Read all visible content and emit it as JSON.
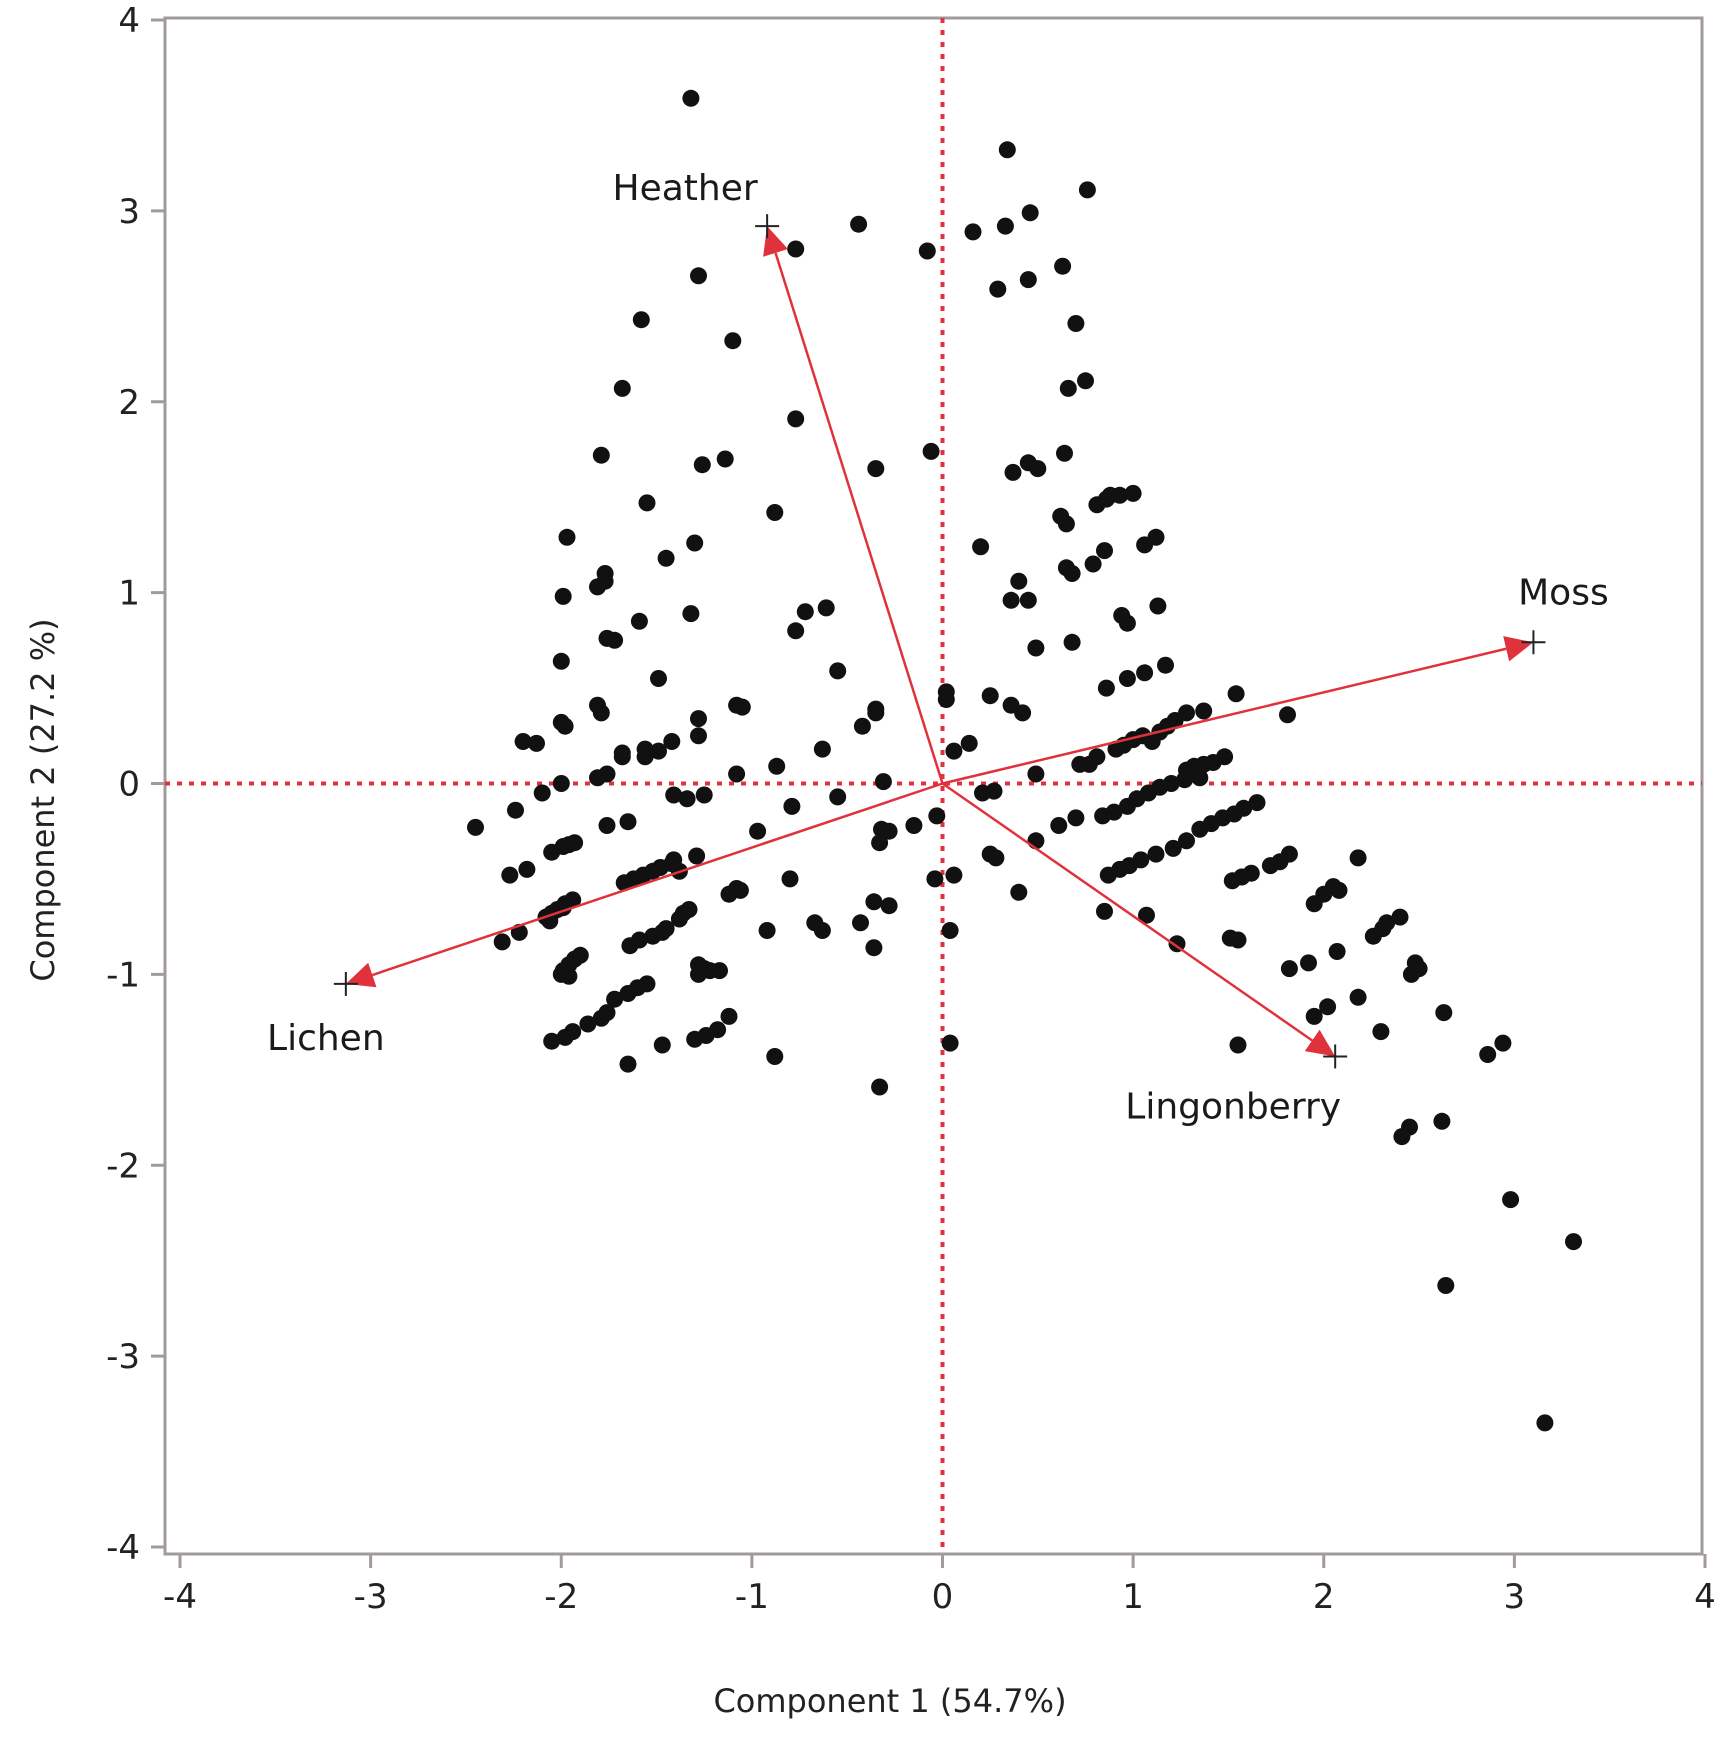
{
  "chart_data": {
    "type": "scatter",
    "title": "",
    "xlabel": "Component 1 (54.7%)",
    "ylabel": "Component 2  (27.2 %)",
    "xlim": [
      -4,
      4
    ],
    "ylim": [
      -4,
      4
    ],
    "x_ticks": [
      "-4",
      "-3",
      "-2",
      "-1",
      "0",
      "1",
      "2",
      "3",
      "4"
    ],
    "y_ticks": [
      "4",
      "3",
      "2",
      "1",
      "0",
      "-1",
      "-2",
      "-3",
      "-4"
    ],
    "grid": false,
    "reference_lines": {
      "x": 0,
      "y": 0,
      "style": "dotted",
      "color": "#e0323c"
    },
    "colors": {
      "points": "#111111",
      "vectors": "#e0323c",
      "frame": "#a09a9a"
    },
    "vectors": [
      {
        "name": "Heather",
        "x": -0.92,
        "y": 2.92
      },
      {
        "name": "Moss",
        "x": 3.1,
        "y": 0.74
      },
      {
        "name": "Lichen",
        "x": -3.13,
        "y": -1.05
      },
      {
        "name": "Lingonberry",
        "x": 2.06,
        "y": -1.43
      }
    ],
    "points": [
      [
        -1.32,
        3.59
      ],
      [
        -0.44,
        2.93
      ],
      [
        -0.08,
        2.79
      ],
      [
        -0.77,
        2.8
      ],
      [
        -1.28,
        2.66
      ],
      [
        -1.58,
        2.43
      ],
      [
        -1.1,
        2.32
      ],
      [
        -1.68,
        2.07
      ],
      [
        -0.77,
        1.91
      ],
      [
        -0.06,
        1.74
      ],
      [
        -1.79,
        1.72
      ],
      [
        -1.14,
        1.7
      ],
      [
        -1.26,
        1.67
      ],
      [
        -0.35,
        1.65
      ],
      [
        -1.55,
        1.47
      ],
      [
        -0.88,
        1.42
      ],
      [
        -1.97,
        1.29
      ],
      [
        -1.3,
        1.26
      ],
      [
        -1.45,
        1.18
      ],
      [
        -1.77,
        1.1
      ],
      [
        -1.77,
        1.06
      ],
      [
        -1.81,
        1.03
      ],
      [
        -1.99,
        0.98
      ],
      [
        -0.61,
        0.92
      ],
      [
        -0.72,
        0.9
      ],
      [
        -1.32,
        0.89
      ],
      [
        -1.59,
        0.85
      ],
      [
        -0.77,
        0.8
      ],
      [
        -1.76,
        0.76
      ],
      [
        -1.72,
        0.75
      ],
      [
        -2.0,
        0.64
      ],
      [
        -0.55,
        0.59
      ],
      [
        -1.49,
        0.55
      ],
      [
        -1.08,
        0.41
      ],
      [
        -1.05,
        0.4
      ],
      [
        -1.81,
        0.41
      ],
      [
        -1.79,
        0.37
      ],
      [
        -0.35,
        0.39
      ],
      [
        -0.35,
        0.37
      ],
      [
        -1.28,
        0.34
      ],
      [
        -2.0,
        0.32
      ],
      [
        -1.98,
        0.3
      ],
      [
        -0.42,
        0.3
      ],
      [
        -1.28,
        0.25
      ],
      [
        -1.42,
        0.22
      ],
      [
        -2.2,
        0.22
      ],
      [
        -2.13,
        0.21
      ],
      [
        -0.63,
        0.18
      ],
      [
        -1.56,
        0.18
      ],
      [
        -1.68,
        0.16
      ],
      [
        -1.68,
        0.14
      ],
      [
        -1.49,
        0.17
      ],
      [
        -1.56,
        0.14
      ],
      [
        -0.87,
        0.09
      ],
      [
        -1.08,
        0.05
      ],
      [
        -1.76,
        0.05
      ],
      [
        -1.81,
        0.03
      ],
      [
        -0.31,
        0.01
      ],
      [
        -2.0,
        0.0
      ],
      [
        -2.1,
        -0.05
      ],
      [
        -1.25,
        -0.06
      ],
      [
        -1.41,
        -0.06
      ],
      [
        -1.34,
        -0.08
      ],
      [
        -0.55,
        -0.07
      ],
      [
        -0.79,
        -0.12
      ],
      [
        -2.24,
        -0.14
      ],
      [
        -2.45,
        -0.23
      ],
      [
        -1.76,
        -0.22
      ],
      [
        -1.65,
        -0.2
      ],
      [
        -0.97,
        -0.25
      ],
      [
        -0.32,
        -0.24
      ],
      [
        -0.28,
        -0.25
      ],
      [
        -1.93,
        -0.31
      ],
      [
        -1.96,
        -0.32
      ],
      [
        -1.99,
        -0.33
      ],
      [
        -0.33,
        -0.31
      ],
      [
        -2.05,
        -0.36
      ],
      [
        -1.29,
        -0.38
      ],
      [
        -1.41,
        -0.4
      ],
      [
        -1.42,
        -0.42
      ],
      [
        -1.48,
        -0.44
      ],
      [
        -1.52,
        -0.46
      ],
      [
        -1.57,
        -0.48
      ],
      [
        -1.62,
        -0.5
      ],
      [
        -1.67,
        -0.52
      ],
      [
        -2.18,
        -0.45
      ],
      [
        -2.27,
        -0.48
      ],
      [
        -0.8,
        -0.5
      ],
      [
        -1.38,
        -0.46
      ],
      [
        -1.06,
        -0.56
      ],
      [
        -1.08,
        -0.55
      ],
      [
        -1.12,
        -0.58
      ],
      [
        -1.94,
        -0.61
      ],
      [
        -1.98,
        -0.63
      ],
      [
        -1.99,
        -0.65
      ],
      [
        -2.02,
        -0.66
      ],
      [
        -2.05,
        -0.68
      ],
      [
        -2.08,
        -0.7
      ],
      [
        -2.06,
        -0.72
      ],
      [
        -1.33,
        -0.66
      ],
      [
        -1.36,
        -0.68
      ],
      [
        -1.38,
        -0.71
      ],
      [
        -1.45,
        -0.76
      ],
      [
        -1.47,
        -0.78
      ],
      [
        -1.52,
        -0.8
      ],
      [
        -1.59,
        -0.82
      ],
      [
        -1.64,
        -0.85
      ],
      [
        -2.31,
        -0.83
      ],
      [
        -2.22,
        -0.78
      ],
      [
        -0.67,
        -0.73
      ],
      [
        -0.63,
        -0.77
      ],
      [
        -0.92,
        -0.77
      ],
      [
        -1.9,
        -0.9
      ],
      [
        -1.93,
        -0.92
      ],
      [
        -1.96,
        -0.95
      ],
      [
        -1.99,
        -0.98
      ],
      [
        -2.0,
        -1.0
      ],
      [
        -1.96,
        -1.01
      ],
      [
        -1.17,
        -0.98
      ],
      [
        -1.22,
        -0.98
      ],
      [
        -1.25,
        -0.97
      ],
      [
        -1.28,
        -0.95
      ],
      [
        -1.28,
        -1.0
      ],
      [
        -1.55,
        -1.05
      ],
      [
        -1.6,
        -1.07
      ],
      [
        -1.65,
        -1.1
      ],
      [
        -1.72,
        -1.13
      ],
      [
        -1.76,
        -1.2
      ],
      [
        -1.79,
        -1.23
      ],
      [
        -1.86,
        -1.26
      ],
      [
        -1.94,
        -1.3
      ],
      [
        -1.98,
        -1.33
      ],
      [
        -2.05,
        -1.35
      ],
      [
        -1.12,
        -1.22
      ],
      [
        -1.18,
        -1.29
      ],
      [
        -1.24,
        -1.32
      ],
      [
        -1.3,
        -1.34
      ],
      [
        -1.47,
        -1.37
      ],
      [
        -1.65,
        -1.47
      ],
      [
        -0.88,
        -1.43
      ],
      [
        -0.33,
        -1.59
      ],
      [
        -0.43,
        -0.73
      ],
      [
        -0.36,
        -0.62
      ],
      [
        -0.28,
        -0.64
      ],
      [
        -0.36,
        -0.86
      ],
      [
        -0.04,
        -0.5
      ],
      [
        0.06,
        -0.48
      ],
      [
        0.04,
        -0.77
      ],
      [
        0.04,
        -1.36
      ],
      [
        -0.03,
        -0.17
      ],
      [
        -0.15,
        -0.22
      ],
      [
        0.02,
        0.44
      ],
      [
        0.02,
        0.48
      ],
      [
        0.06,
        0.17
      ],
      [
        0.14,
        0.21
      ],
      [
        0.25,
        0.46
      ],
      [
        0.36,
        0.41
      ],
      [
        0.42,
        0.37
      ],
      [
        0.49,
        0.05
      ],
      [
        0.21,
        -0.05
      ],
      [
        0.27,
        -0.04
      ],
      [
        0.25,
        -0.37
      ],
      [
        0.28,
        -0.39
      ],
      [
        0.4,
        -0.57
      ],
      [
        0.49,
        -0.3
      ],
      [
        0.61,
        -0.22
      ],
      [
        0.7,
        -0.18
      ],
      [
        0.29,
        2.59
      ],
      [
        0.16,
        2.89
      ],
      [
        0.33,
        2.92
      ],
      [
        0.46,
        2.99
      ],
      [
        0.34,
        3.32
      ],
      [
        0.76,
        3.11
      ],
      [
        0.63,
        2.71
      ],
      [
        0.45,
        2.64
      ],
      [
        0.7,
        2.41
      ],
      [
        0.66,
        2.07
      ],
      [
        0.75,
        2.11
      ],
      [
        0.45,
        1.68
      ],
      [
        0.5,
        1.65
      ],
      [
        0.37,
        1.63
      ],
      [
        0.64,
        1.73
      ],
      [
        0.62,
        1.4
      ],
      [
        0.65,
        1.36
      ],
      [
        0.81,
        1.46
      ],
      [
        0.86,
        1.49
      ],
      [
        0.88,
        1.51
      ],
      [
        0.93,
        1.51
      ],
      [
        1.0,
        1.52
      ],
      [
        0.2,
        1.24
      ],
      [
        0.65,
        1.13
      ],
      [
        0.68,
        1.1
      ],
      [
        0.79,
        1.15
      ],
      [
        0.85,
        1.22
      ],
      [
        1.06,
        1.25
      ],
      [
        1.12,
        1.29
      ],
      [
        0.4,
        1.06
      ],
      [
        0.36,
        0.96
      ],
      [
        0.45,
        0.96
      ],
      [
        0.94,
        0.88
      ],
      [
        0.97,
        0.84
      ],
      [
        1.13,
        0.93
      ],
      [
        0.68,
        0.74
      ],
      [
        0.49,
        0.71
      ],
      [
        0.97,
        0.55
      ],
      [
        1.06,
        0.58
      ],
      [
        1.17,
        0.62
      ],
      [
        0.86,
        0.5
      ],
      [
        1.1,
        0.22
      ],
      [
        1.14,
        0.27
      ],
      [
        1.18,
        0.3
      ],
      [
        1.22,
        0.33
      ],
      [
        1.28,
        0.37
      ],
      [
        1.37,
        0.38
      ],
      [
        1.54,
        0.47
      ],
      [
        1.81,
        0.36
      ],
      [
        0.91,
        0.18
      ],
      [
        0.95,
        0.2
      ],
      [
        1.0,
        0.23
      ],
      [
        1.05,
        0.25
      ],
      [
        0.81,
        0.14
      ],
      [
        0.77,
        0.1
      ],
      [
        0.72,
        0.1
      ],
      [
        1.28,
        0.07
      ],
      [
        1.32,
        0.09
      ],
      [
        1.37,
        0.1
      ],
      [
        1.42,
        0.11
      ],
      [
        1.48,
        0.14
      ],
      [
        1.35,
        0.03
      ],
      [
        1.27,
        0.02
      ],
      [
        1.2,
        0.0
      ],
      [
        1.14,
        -0.02
      ],
      [
        1.08,
        -0.05
      ],
      [
        1.02,
        -0.08
      ],
      [
        0.97,
        -0.12
      ],
      [
        0.9,
        -0.15
      ],
      [
        0.84,
        -0.17
      ],
      [
        1.65,
        -0.1
      ],
      [
        1.58,
        -0.13
      ],
      [
        1.53,
        -0.16
      ],
      [
        1.47,
        -0.18
      ],
      [
        1.41,
        -0.21
      ],
      [
        1.35,
        -0.24
      ],
      [
        1.28,
        -0.3
      ],
      [
        1.21,
        -0.34
      ],
      [
        1.12,
        -0.37
      ],
      [
        1.04,
        -0.4
      ],
      [
        0.98,
        -0.43
      ],
      [
        0.93,
        -0.45
      ],
      [
        0.87,
        -0.48
      ],
      [
        1.82,
        -0.37
      ],
      [
        1.77,
        -0.41
      ],
      [
        1.72,
        -0.43
      ],
      [
        1.62,
        -0.47
      ],
      [
        1.57,
        -0.49
      ],
      [
        1.52,
        -0.51
      ],
      [
        1.07,
        -0.69
      ],
      [
        1.23,
        -0.84
      ],
      [
        1.55,
        -0.82
      ],
      [
        0.85,
        -0.67
      ],
      [
        1.51,
        -0.81
      ],
      [
        2.18,
        -0.39
      ],
      [
        2.05,
        -0.54
      ],
      [
        2.0,
        -0.58
      ],
      [
        2.08,
        -0.56
      ],
      [
        1.95,
        -0.63
      ],
      [
        2.26,
        -0.8
      ],
      [
        2.31,
        -0.76
      ],
      [
        2.33,
        -0.73
      ],
      [
        2.4,
        -0.7
      ],
      [
        2.07,
        -0.88
      ],
      [
        1.92,
        -0.94
      ],
      [
        1.82,
        -0.97
      ],
      [
        2.46,
        -1.0
      ],
      [
        2.5,
        -0.97
      ],
      [
        2.48,
        -0.94
      ],
      [
        2.18,
        -1.12
      ],
      [
        2.02,
        -1.17
      ],
      [
        1.95,
        -1.22
      ],
      [
        2.63,
        -1.2
      ],
      [
        2.3,
        -1.3
      ],
      [
        1.55,
        -1.37
      ],
      [
        2.86,
        -1.42
      ],
      [
        2.94,
        -1.36
      ],
      [
        2.62,
        -1.77
      ],
      [
        2.45,
        -1.8
      ],
      [
        2.98,
        -2.18
      ],
      [
        3.31,
        -2.4
      ],
      [
        2.64,
        -2.63
      ],
      [
        3.16,
        -3.35
      ],
      [
        2.41,
        -1.85
      ]
    ]
  }
}
